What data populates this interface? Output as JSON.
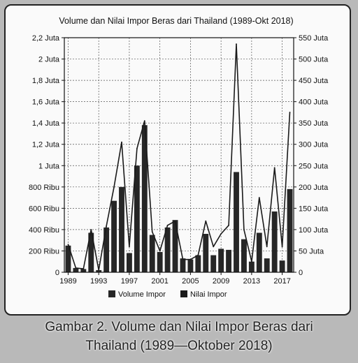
{
  "chart_data": {
    "type": "bar",
    "title": "Volume dan Nilai Impor Beras dari Thailand (1989-Okt 2018)",
    "x": [
      1989,
      1990,
      1991,
      1992,
      1993,
      1994,
      1995,
      1996,
      1997,
      1998,
      1999,
      2000,
      2001,
      2002,
      2003,
      2004,
      2005,
      2006,
      2007,
      2008,
      2009,
      2010,
      2011,
      2012,
      2013,
      2014,
      2015,
      2016,
      2017,
      2018
    ],
    "x_tick_labels": [
      "1989",
      "1993",
      "1997",
      "2001",
      "2005",
      "2009",
      "2013",
      "2017"
    ],
    "y_left_tick_labels": [
      "0",
      "200 Ribu",
      "400 Ribu",
      "600 Ribu",
      "800 Ribu",
      "1 Juta",
      "1,2 Juta",
      "1,4 Juta",
      "1,6 Juta",
      "1,8 Juta",
      "2 Juta",
      "2,2 Juta"
    ],
    "y_right_tick_labels": [
      "0",
      "50 Juta",
      "100 Juta",
      "150 Juta",
      "200 Juta",
      "250 Juta",
      "300 Juta",
      "350 Juta",
      "400 Juta",
      "450 Juta",
      "500 Juta",
      "550 Juta"
    ],
    "y_left_lim": [
      0,
      2200000
    ],
    "y_right_lim": [
      0,
      550000000
    ],
    "grid": "dashed",
    "series": [
      {
        "name": "Volume Impor",
        "type": "bar",
        "axis": "left",
        "values": [
          250000,
          40000,
          30000,
          370000,
          20000,
          420000,
          670000,
          800000,
          180000,
          1000000,
          1380000,
          350000,
          190000,
          420000,
          490000,
          130000,
          120000,
          160000,
          360000,
          160000,
          220000,
          210000,
          940000,
          310000,
          100000,
          370000,
          130000,
          570000,
          110000,
          780000
        ]
      },
      {
        "name": "Nilai Impor",
        "type": "line",
        "axis": "right",
        "values": [
          65000000,
          10000000,
          8000000,
          100000000,
          5000000,
          108000000,
          200000000,
          305000000,
          60000000,
          290000000,
          355000000,
          95000000,
          50000000,
          110000000,
          120000000,
          30000000,
          30000000,
          40000000,
          120000000,
          60000000,
          90000000,
          110000000,
          535000000,
          100000000,
          25000000,
          175000000,
          60000000,
          245000000,
          60000000,
          375000000
        ]
      }
    ],
    "legend": "bottom"
  },
  "caption": {
    "line1": "Gambar 2. Volume dan Nilai Impor Beras dari",
    "line2": "Thailand (1989—Oktober 2018)"
  },
  "colors": {
    "bar": "#262626",
    "line": "#1a1a1a",
    "grid": "#555555"
  }
}
